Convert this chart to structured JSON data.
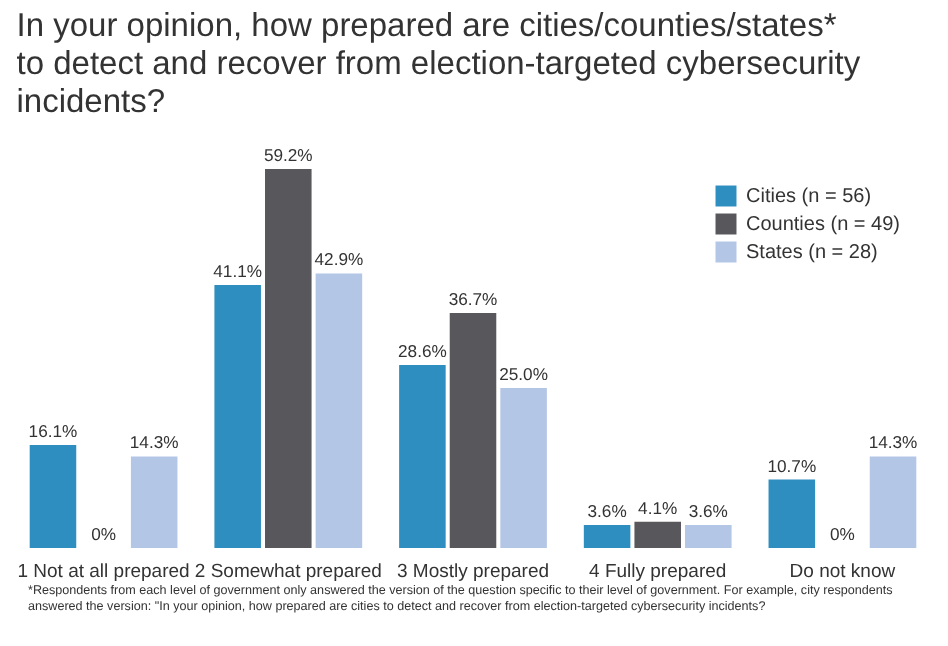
{
  "chart_data": {
    "type": "bar",
    "title": "In your opinion, how prepared are cities/counties/states* to detect and recover from election-targeted cybersecurity incidents?",
    "categories": [
      "1 Not at all prepared",
      "2 Somewhat prepared",
      "3 Mostly prepared",
      "4 Fully prepared",
      "Do not know"
    ],
    "series": [
      {
        "name": "Cities (n = 56)",
        "color": "#2f8ec0",
        "values": [
          16.1,
          41.1,
          28.6,
          3.6,
          10.7
        ],
        "value_labels": [
          "16.1%",
          "41.1%",
          "28.6%",
          "3.6%",
          "10.7%"
        ]
      },
      {
        "name": "Counties (n = 49)",
        "color": "#58585c",
        "values": [
          0,
          59.2,
          36.7,
          4.1,
          0
        ],
        "value_labels": [
          "0%",
          "59.2%",
          "36.7%",
          "4.1%",
          "0%"
        ]
      },
      {
        "name": "States (n = 28)",
        "color": "#b3c6e6",
        "values": [
          14.3,
          42.9,
          25.0,
          3.6,
          14.3
        ],
        "value_labels": [
          "14.3%",
          "42.9%",
          "25.0%",
          "3.6%",
          "14.3%"
        ]
      }
    ],
    "tick_labels": "x",
    "legend": "top right",
    "annotations": [
      "*Respondents from each level of government only answered the version of the question specific to their level of government. For example, city respondents answered the version: \"In your opinion, how prepared are cities to detect and recover from election-targeted cybersecurity incidents?"
    ]
  }
}
